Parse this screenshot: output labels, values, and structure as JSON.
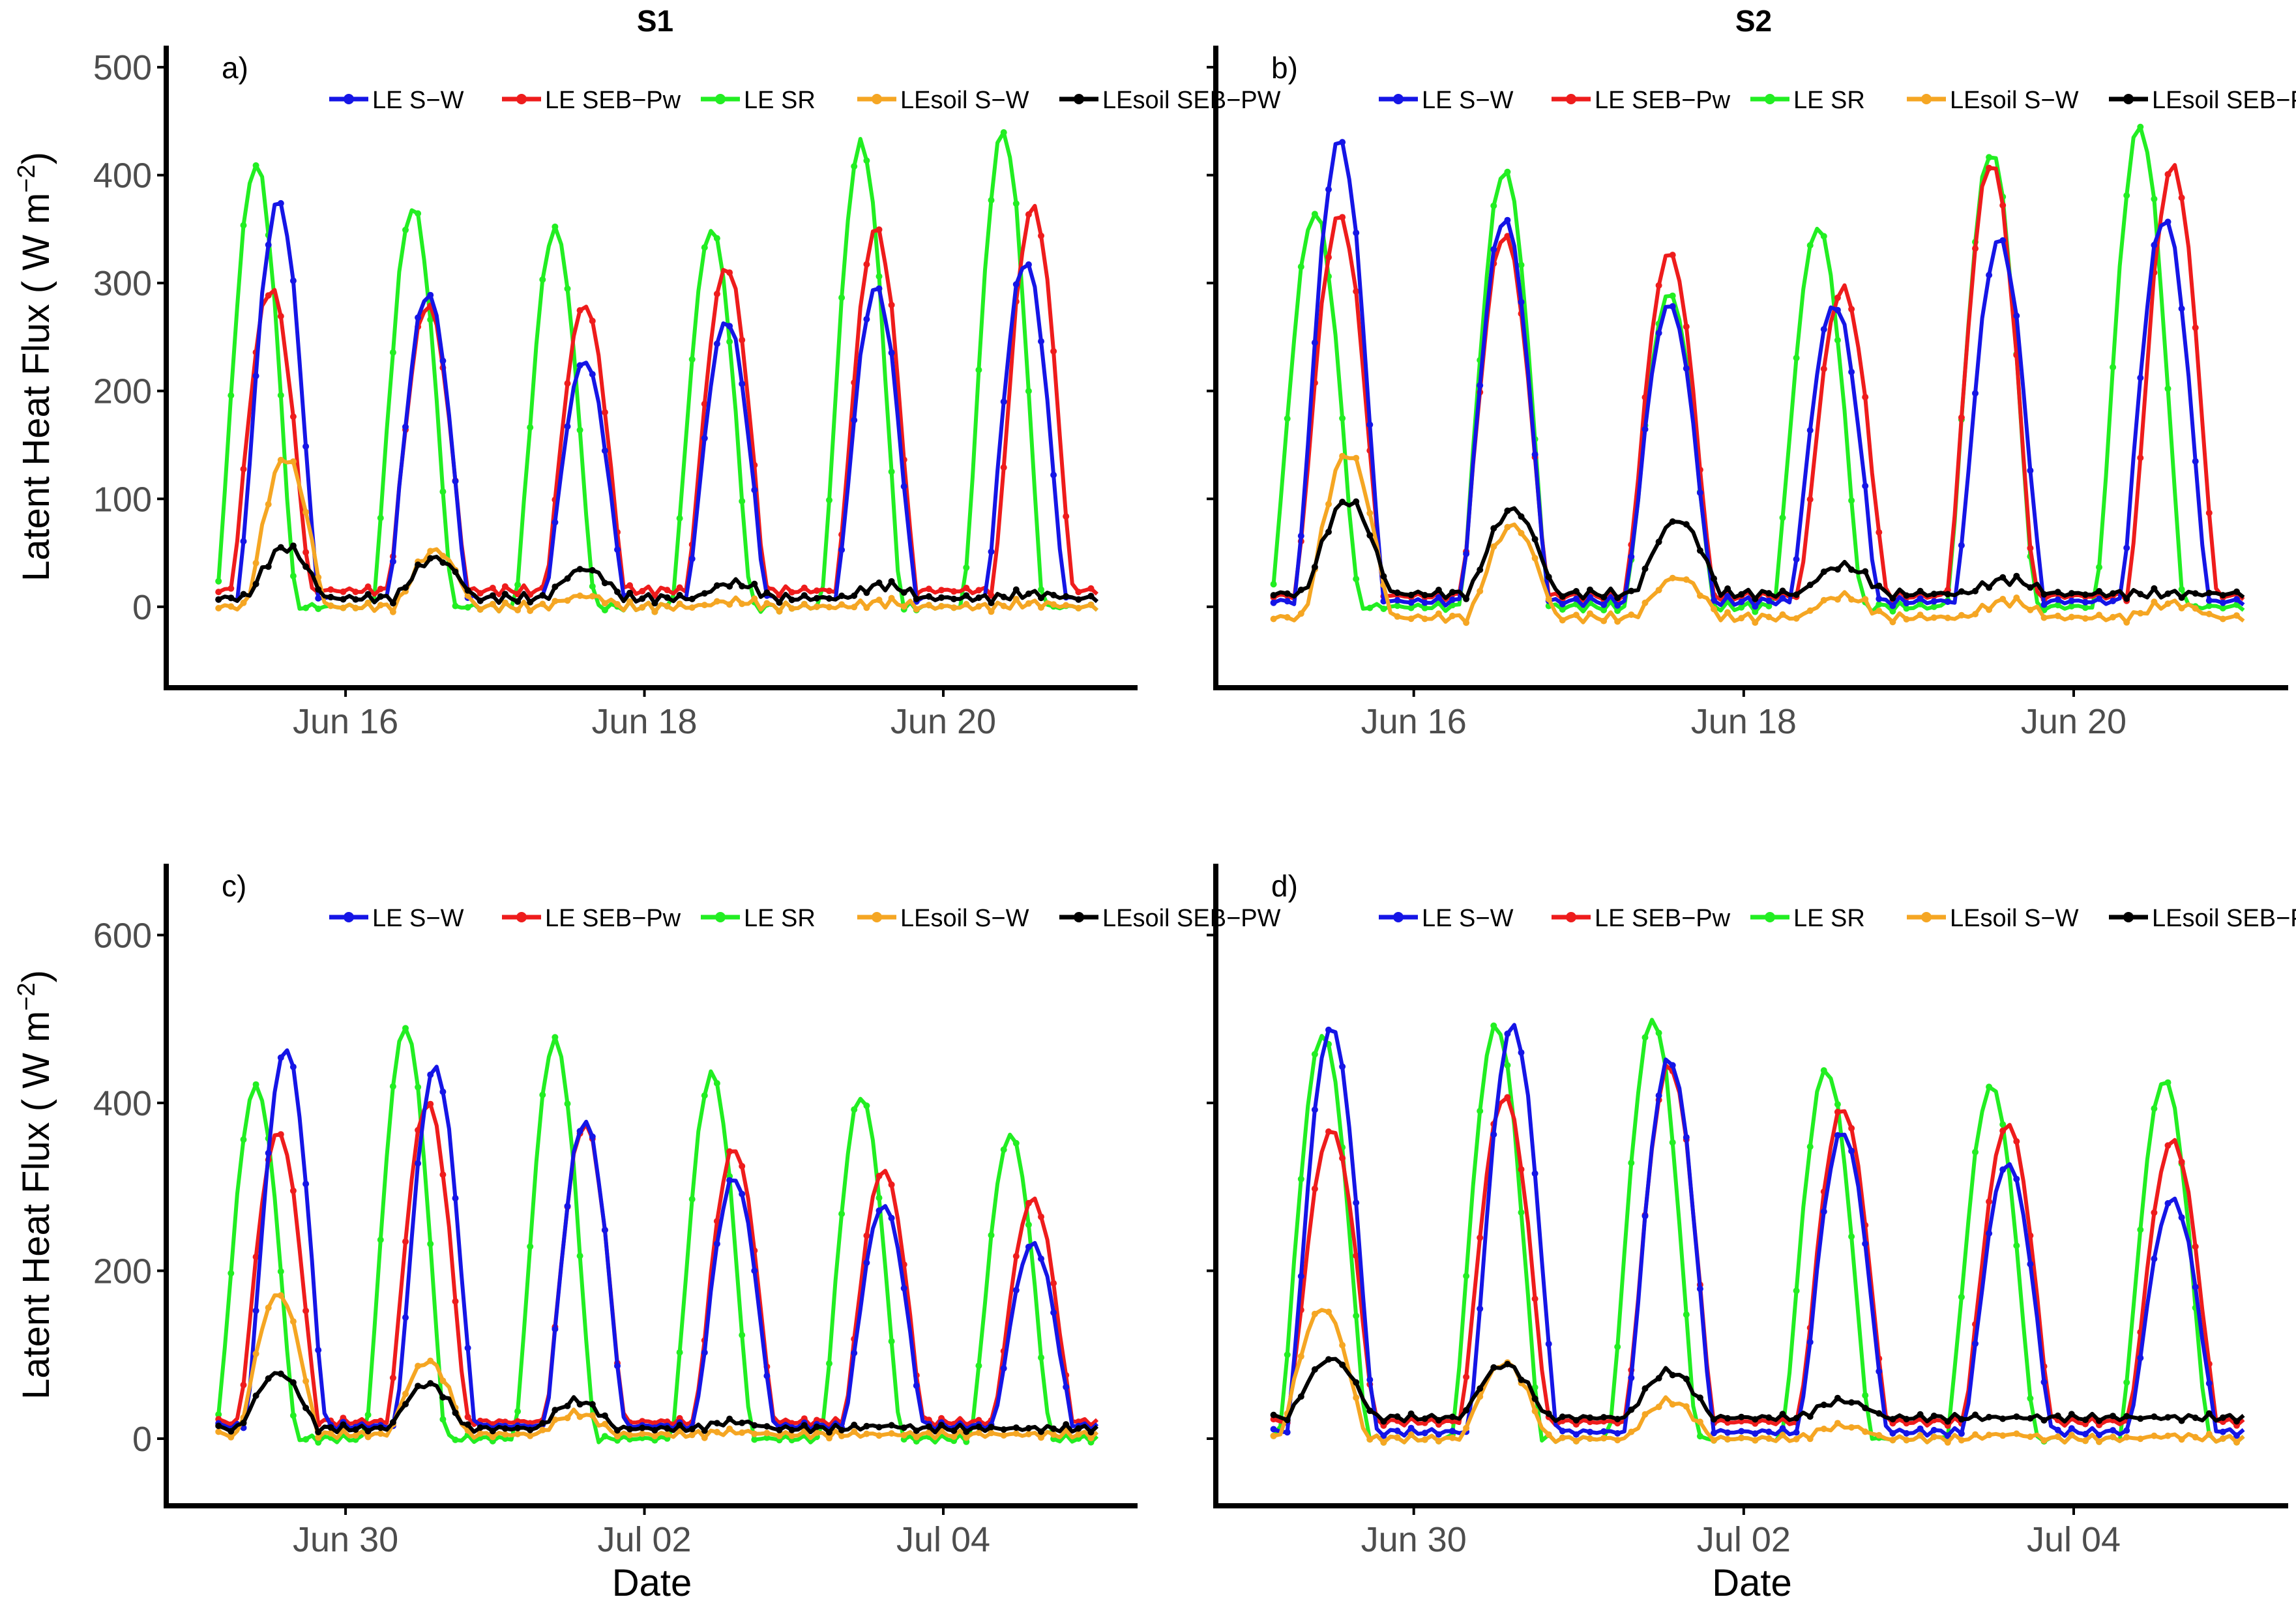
{
  "figure": {
    "column_titles": [
      "S1",
      "S2"
    ],
    "ylabel": "Latent Heat Flux ( W m",
    "ylabel_sup": "−2",
    "ylabel_close": ")",
    "xlabel": "Date"
  },
  "colors": {
    "LE S-W": "#1515e6",
    "LE SEB-Pw": "#ee1c1c",
    "LE SR": "#22ee22",
    "LEsoil S-W": "#f5a623",
    "LEsoil SEB-PW": "#000000"
  },
  "chart_data": [
    {
      "panel": "a)",
      "type": "line",
      "column": "S1",
      "xlabel": "",
      "ylabel": "Latent Heat Flux ( W m−2)",
      "xlim": [
        14.8,
        21.3
      ],
      "ylim": [
        -75,
        520
      ],
      "yticks": [
        0,
        100,
        200,
        300,
        400,
        500
      ],
      "xticks": [
        16,
        18,
        20
      ],
      "xtick_labels": [
        "Jun 16",
        "Jun 18",
        "Jun 20"
      ],
      "legend": [
        "LE S−W",
        "LE SEB−Pw",
        "LE SR",
        "LEsoil S−W",
        "LEsoil SEB−PW"
      ],
      "legend_position": "top",
      "series": [
        {
          "name": "LE S-W",
          "peak_x": [
            15.55,
            16.55,
            17.6,
            18.55,
            19.55,
            20.55
          ],
          "peaks": [
            375,
            290,
            228,
            265,
            295,
            320
          ],
          "night": 8
        },
        {
          "name": "LE SEB-Pw",
          "peak_x": [
            15.5,
            16.55,
            17.6,
            18.55,
            19.55,
            20.6
          ],
          "peaks": [
            295,
            280,
            280,
            315,
            350,
            370
          ],
          "night": 15
        },
        {
          "name": "LE SR",
          "peak_x": [
            15.4,
            16.45,
            17.4,
            18.45,
            19.45,
            20.4
          ],
          "peaks": [
            410,
            370,
            350,
            350,
            430,
            440
          ],
          "night": 0
        },
        {
          "name": "LEsoil S-W",
          "peak_x": [
            15.6,
            16.6,
            17.6,
            18.6,
            19.6,
            20.6
          ],
          "peaks": [
            138,
            52,
            10,
            5,
            4,
            3
          ],
          "night": 0
        },
        {
          "name": "LEsoil SEB-PW",
          "peak_x": [
            15.6,
            16.6,
            17.6,
            18.6,
            19.6,
            20.6
          ],
          "peaks": [
            55,
            45,
            35,
            22,
            20,
            12
          ],
          "night": 8
        }
      ]
    },
    {
      "panel": "b)",
      "type": "line",
      "column": "S2",
      "xlabel": "",
      "ylabel": "",
      "xlim": [
        14.8,
        21.3
      ],
      "ylim": [
        -75,
        520
      ],
      "yticks": [
        0,
        100,
        200,
        300,
        400,
        500
      ],
      "xticks": [
        16,
        18,
        20
      ],
      "xtick_labels": [
        "Jun 16",
        "Jun 18",
        "Jun 20"
      ],
      "legend": [
        "LE S−W",
        "LE SEB−Pw",
        "LE SR",
        "LEsoil S−W",
        "LEsoil SEB−PW"
      ],
      "legend_position": "top",
      "series": [
        {
          "name": "LE S-W",
          "peak_x": [
            15.55,
            16.55,
            17.55,
            18.55,
            19.55,
            20.55
          ],
          "peaks": [
            432,
            360,
            280,
            280,
            340,
            360
          ],
          "night": 5
        },
        {
          "name": "LE SEB-Pw",
          "peak_x": [
            15.55,
            16.55,
            17.55,
            18.6,
            19.5,
            20.6
          ],
          "peaks": [
            362,
            345,
            328,
            295,
            412,
            408
          ],
          "night": 10
        },
        {
          "name": "LE SR",
          "peak_x": [
            15.4,
            16.55,
            17.55,
            18.45,
            19.5,
            20.4
          ],
          "peaks": [
            365,
            405,
            290,
            352,
            422,
            445
          ],
          "night": 0
        },
        {
          "name": "LEsoil S-W",
          "peak_x": [
            15.6,
            16.6,
            17.6,
            18.6,
            19.6,
            20.6
          ],
          "peaks": [
            142,
            75,
            27,
            10,
            5,
            3
          ],
          "night": -10
        },
        {
          "name": "LEsoil SEB-PW",
          "peak_x": [
            15.6,
            16.6,
            17.6,
            18.6,
            19.6,
            20.6
          ],
          "peaks": [
            98,
            90,
            80,
            38,
            25,
            10
          ],
          "night": 12
        }
      ]
    },
    {
      "panel": "c)",
      "type": "line",
      "column": "S1",
      "xlabel": "Date",
      "ylabel": "Latent Heat Flux ( W m−2)",
      "xlim": [
        28.8,
        35.3
      ],
      "ylim": [
        -80,
        685
      ],
      "yticks": [
        0,
        200,
        400,
        600
      ],
      "xticks": [
        30,
        32,
        34
      ],
      "xtick_labels": [
        "Jun 30",
        "Jul 02",
        "Jul 04"
      ],
      "legend": [
        "LE S−W",
        "LE SEB−Pw",
        "LE SR",
        "LEsoil S−W",
        "LEsoil SEB−PW"
      ],
      "legend_position": "top",
      "series": [
        {
          "name": "LE S-W",
          "peak_x": [
            29.6,
            30.6,
            31.6,
            32.6,
            33.6,
            34.6
          ],
          "peaks": [
            465,
            442,
            378,
            310,
            278,
            232
          ],
          "night": 15
        },
        {
          "name": "LE SEB-Pw",
          "peak_x": [
            29.55,
            30.55,
            31.6,
            32.6,
            33.6,
            34.6
          ],
          "peaks": [
            365,
            400,
            375,
            345,
            320,
            285
          ],
          "night": 20
        },
        {
          "name": "LE SR",
          "peak_x": [
            29.4,
            30.4,
            31.4,
            32.45,
            33.45,
            34.45
          ],
          "peaks": [
            420,
            490,
            475,
            435,
            408,
            362
          ],
          "night": 0
        },
        {
          "name": "LEsoil S-W",
          "peak_x": [
            29.55,
            30.55,
            31.55,
            32.6,
            33.6,
            34.6
          ],
          "peaks": [
            172,
            92,
            30,
            8,
            5,
            3
          ],
          "night": 5
        },
        {
          "name": "LEsoil SEB-PW",
          "peak_x": [
            29.55,
            30.55,
            31.55,
            32.6,
            33.6,
            34.6
          ],
          "peaks": [
            78,
            65,
            45,
            20,
            15,
            10
          ],
          "night": 12
        }
      ]
    },
    {
      "panel": "d)",
      "type": "line",
      "column": "S2",
      "xlabel": "Date",
      "ylabel": "",
      "xlim": [
        28.8,
        35.3
      ],
      "ylim": [
        -80,
        685
      ],
      "yticks": [
        0,
        200,
        400,
        600
      ],
      "xticks": [
        30,
        32,
        34
      ],
      "xtick_labels": [
        "Jun 30",
        "Jul 02",
        "Jul 04"
      ],
      "legend": [
        "LE S−W",
        "LE SEB−Pw",
        "LE SR",
        "LEsoil S−W",
        "LEsoil SEB−PW"
      ],
      "legend_position": "top",
      "series": [
        {
          "name": "LE S-W",
          "peak_x": [
            29.5,
            30.6,
            31.55,
            32.6,
            33.6,
            34.6
          ],
          "peaks": [
            490,
            492,
            452,
            365,
            328,
            285
          ],
          "night": 8
        },
        {
          "name": "LE SEB-Pw",
          "peak_x": [
            29.5,
            30.55,
            31.55,
            32.6,
            33.6,
            34.6
          ],
          "peaks": [
            368,
            408,
            445,
            393,
            375,
            355
          ],
          "night": 20
        },
        {
          "name": "LE SR",
          "peak_x": [
            29.45,
            30.5,
            31.45,
            32.5,
            33.5,
            34.55
          ],
          "peaks": [
            482,
            492,
            500,
            440,
            420,
            428
          ],
          "night": 0
        },
        {
          "name": "LEsoil S-W",
          "peak_x": [
            29.45,
            30.55,
            31.55,
            32.6,
            33.6,
            34.6
          ],
          "peaks": [
            155,
            90,
            45,
            15,
            5,
            3
          ],
          "night": 0
        },
        {
          "name": "LEsoil SEB-PW",
          "peak_x": [
            29.5,
            30.55,
            31.55,
            32.6,
            33.6,
            34.6
          ],
          "peaks": [
            95,
            88,
            80,
            45,
            22,
            12
          ],
          "night": 25
        }
      ]
    }
  ]
}
